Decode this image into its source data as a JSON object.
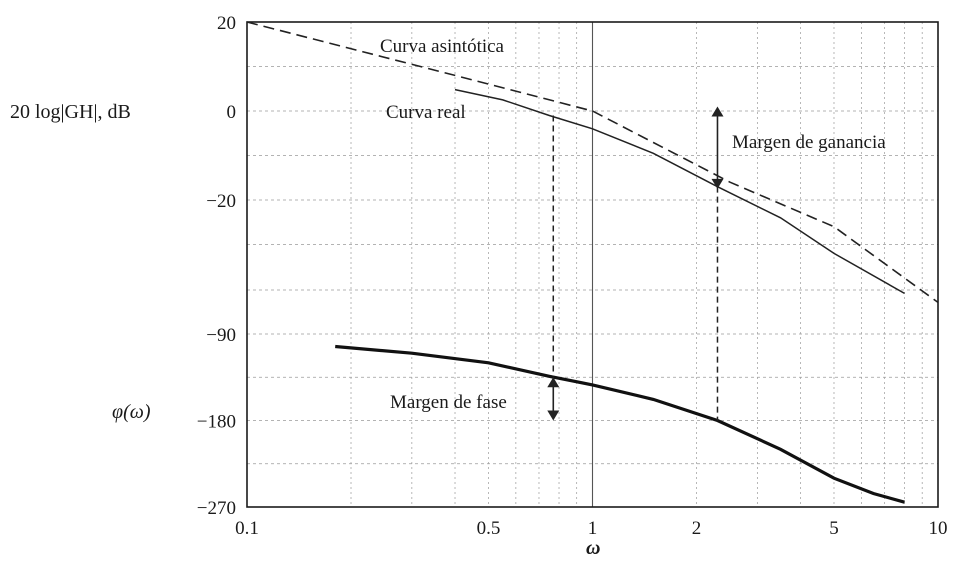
{
  "chart_data": {
    "type": "line",
    "xscale": "log",
    "xlim": [
      0.1,
      10
    ],
    "x_ticks": [
      0.1,
      0.5,
      1,
      2,
      5,
      10
    ],
    "x_tick_labels": [
      "0.1",
      "0.5",
      "1",
      "2",
      "5",
      "10"
    ],
    "xlabel": "ω",
    "left_axis_labels": [
      {
        "text": "20 log|GH|, dB",
        "band": "magnitude"
      },
      {
        "text": "φ(ω)",
        "band": "phase"
      }
    ],
    "magnitude_ticks": [
      {
        "value": 20,
        "label": "20"
      },
      {
        "value": 0,
        "label": "0"
      },
      {
        "value": -20,
        "label": "−20"
      }
    ],
    "phase_ticks": [
      {
        "value": -90,
        "label": "−90"
      },
      {
        "value": -180,
        "label": "−180"
      },
      {
        "value": -270,
        "label": "−270"
      }
    ],
    "series": [
      {
        "name": "Curva asintótica",
        "band": "magnitude",
        "style": "dashed",
        "x": [
          0.1,
          0.4,
          1.0,
          2.5,
          5.0,
          10.0
        ],
        "y": [
          20,
          8,
          0,
          -16,
          -26,
          -43
        ]
      },
      {
        "name": "Curva real",
        "band": "magnitude",
        "style": "solid",
        "x": [
          0.4,
          0.55,
          0.75,
          1.0,
          1.5,
          2.3,
          3.5,
          5.0,
          8.0
        ],
        "y": [
          4.8,
          2.5,
          -1,
          -4,
          -9.5,
          -17,
          -24,
          -32,
          -41
        ]
      },
      {
        "name": "Fase",
        "band": "phase",
        "style": "solid-bold",
        "x": [
          0.18,
          0.3,
          0.5,
          0.75,
          1.0,
          1.5,
          2.3,
          3.5,
          5.0,
          6.5,
          8.0
        ],
        "y": [
          -103,
          -110,
          -120,
          -134,
          -143,
          -158,
          -180,
          -210,
          -240,
          -256,
          -265
        ]
      }
    ],
    "annotations": [
      {
        "text": "Curva asintótica"
      },
      {
        "text": "Curva real"
      },
      {
        "text": "Margen de ganancia",
        "x": 2.3
      },
      {
        "text": "Margen de fase",
        "x": 0.77
      }
    ],
    "grid": true
  }
}
